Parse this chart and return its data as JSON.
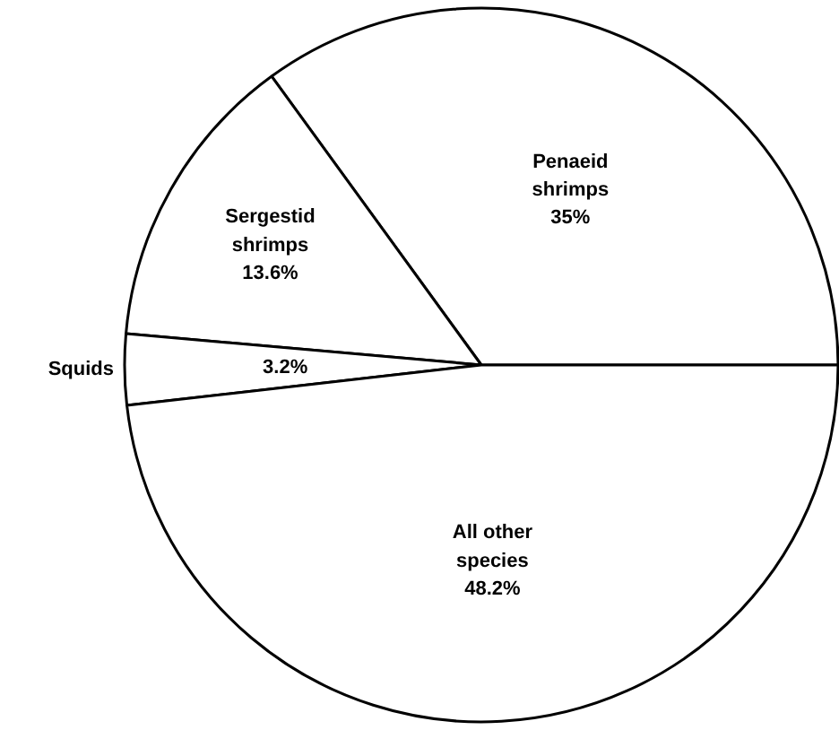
{
  "chart_data": {
    "type": "pie",
    "categories": [
      "Penaeid shrimps",
      "Sergestid shrimps",
      "Squids",
      "All other species"
    ],
    "values": [
      35,
      13.6,
      3.2,
      48.2
    ],
    "value_labels": [
      "35%",
      "13.6%",
      "3.2%",
      "48.2%"
    ],
    "colors": [
      "#ffffff",
      "#ffffff",
      "#ffffff",
      "#ffffff"
    ]
  }
}
